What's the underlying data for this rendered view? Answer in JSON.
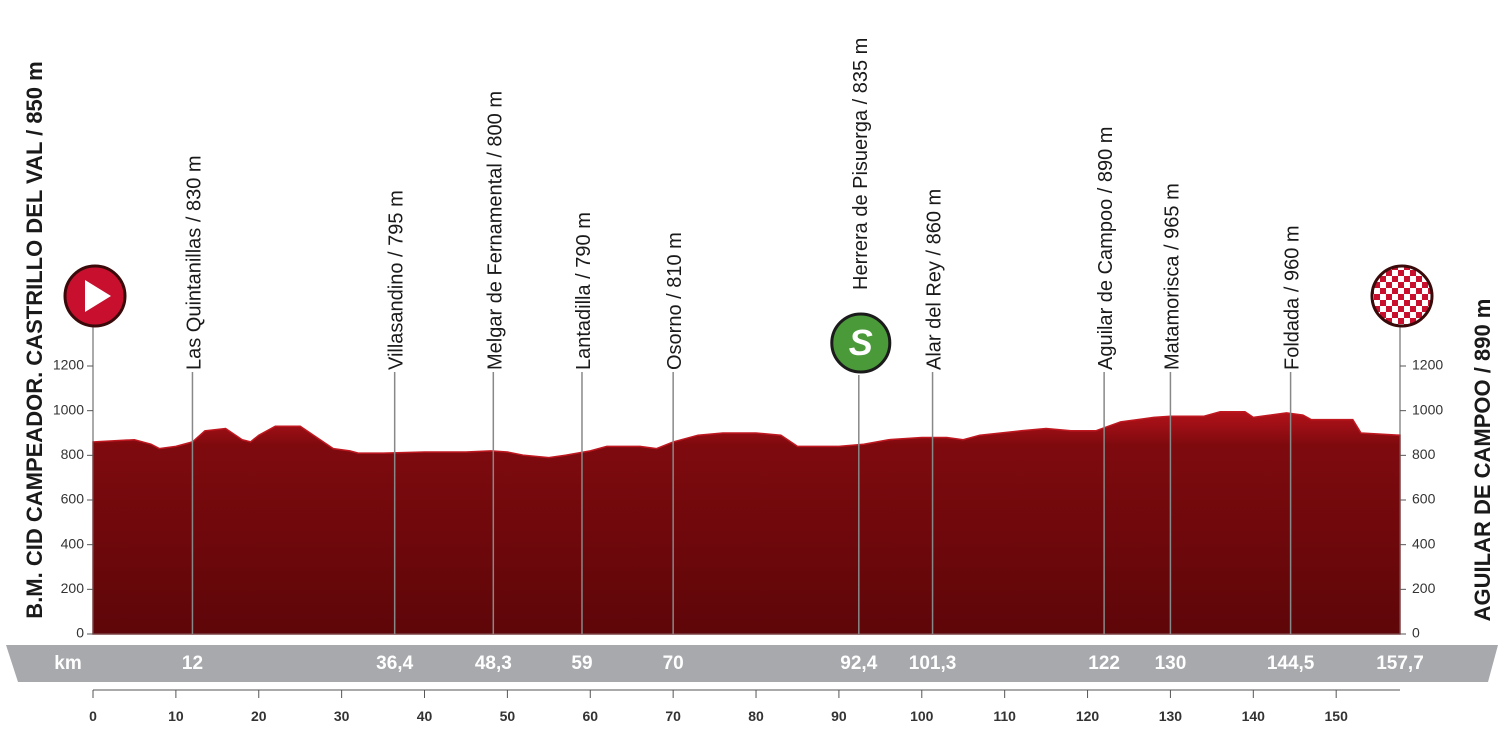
{
  "chart_data": {
    "type": "elevation-profile",
    "start_label": "B.M. CID CAMPEADOR. CASTRILLO DEL VAL / 850 m",
    "finish_label": "AGUILAR DE CAMPOO / 890 m",
    "x_unit_label": "km",
    "sprint_symbol": "S",
    "color": "#8a0b0f",
    "xlim": [
      0,
      157.7
    ],
    "xticks": [
      0,
      10,
      20,
      30,
      40,
      50,
      60,
      70,
      80,
      90,
      100,
      110,
      120,
      130,
      140,
      150
    ],
    "ylim": [
      0,
      1200
    ],
    "yticks": [
      0,
      200,
      400,
      600,
      800,
      1000,
      1200
    ],
    "profile": {
      "x": [
        0,
        5,
        7,
        8,
        10,
        12,
        13.5,
        16,
        18,
        19,
        20,
        22,
        25,
        27,
        29,
        31,
        32,
        35,
        40,
        45,
        48,
        50,
        52,
        55,
        57,
        60,
        62,
        66,
        68,
        70,
        73,
        76,
        80,
        83,
        85,
        90,
        93,
        96,
        100,
        103,
        105,
        107,
        112,
        115,
        118,
        121,
        124,
        128,
        130,
        134,
        136,
        139,
        140,
        142,
        144,
        146,
        147,
        152,
        153,
        157.7
      ],
      "values": [
        860,
        870,
        850,
        830,
        840,
        860,
        910,
        920,
        870,
        860,
        890,
        930,
        930,
        880,
        830,
        820,
        810,
        810,
        815,
        815,
        820,
        815,
        800,
        790,
        800,
        820,
        840,
        840,
        830,
        860,
        890,
        900,
        900,
        890,
        840,
        840,
        850,
        870,
        880,
        880,
        870,
        890,
        910,
        920,
        910,
        910,
        950,
        970,
        975,
        975,
        995,
        995,
        970,
        980,
        990,
        980,
        960,
        960,
        900,
        890
      ]
    },
    "waypoints": [
      {
        "label": "Las Quintanillas / 830 m",
        "km": 12
      },
      {
        "label": "Villasandino / 795 m",
        "km": {
          "value": 36.4,
          "label": "36,4"
        }
      },
      {
        "label": "Melgar de Fernamental / 800 m",
        "km": {
          "value": 48.3,
          "label": "48,3"
        }
      },
      {
        "label": "Lantadilla / 790 m",
        "km": 59
      },
      {
        "label": "Osorno / 810 m",
        "km": 70
      },
      {
        "label": "Herrera de Pisuerga / 835 m",
        "km": {
          "value": 92.4,
          "label": "92,4"
        },
        "sprint": true
      },
      {
        "label": "Alar del Rey / 860 m",
        "km": {
          "value": 101.3,
          "label": "101,3"
        }
      },
      {
        "label": "Aguilar de Campoo / 890 m",
        "km": 122
      },
      {
        "label": "Matamorisca / 965 m",
        "km": 130
      },
      {
        "label": "Foldada / 960 m",
        "km": {
          "value": 144.5,
          "label": "144,5"
        }
      }
    ],
    "finish_km": {
      "value": 157.7,
      "label": "157,7"
    }
  }
}
